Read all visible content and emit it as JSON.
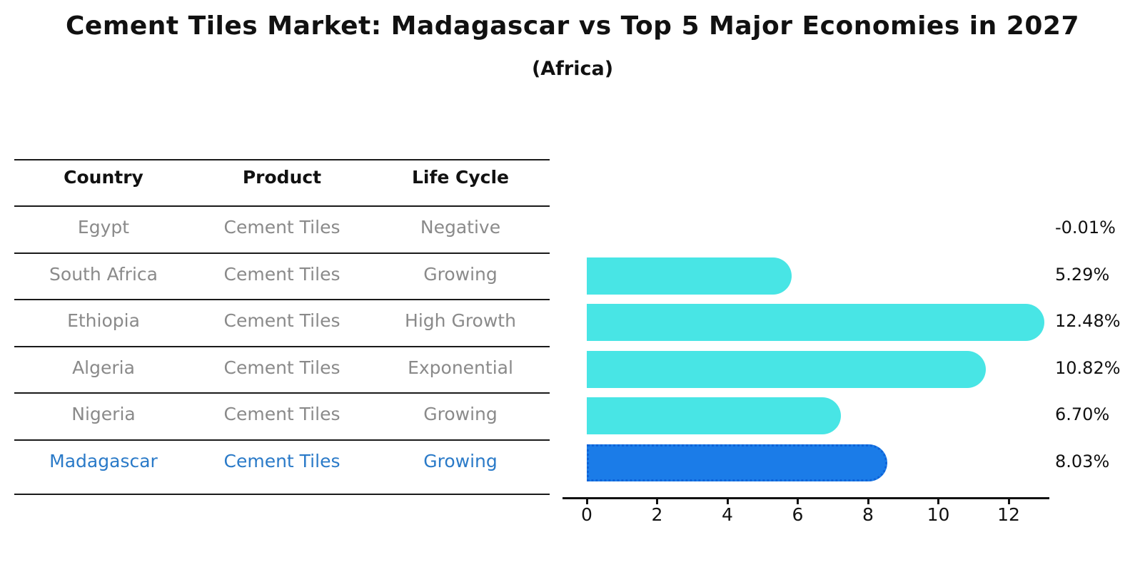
{
  "title": "Cement Tiles Market: Madagascar vs Top 5 Major Economies in 2027",
  "subtitle": "(Africa)",
  "table": {
    "columns": [
      "Country",
      "Product",
      "Life Cycle"
    ],
    "rows": [
      {
        "country": "Egypt",
        "product": "Cement Tiles",
        "life_cycle": "Negative",
        "highlight": false
      },
      {
        "country": "South Africa",
        "product": "Cement Tiles",
        "life_cycle": "Growing",
        "highlight": false
      },
      {
        "country": "Ethiopia",
        "product": "Cement Tiles",
        "life_cycle": "High Growth",
        "highlight": false
      },
      {
        "country": "Algeria",
        "product": "Cement Tiles",
        "life_cycle": "Exponential",
        "highlight": false
      },
      {
        "country": "Nigeria",
        "product": "Cement Tiles",
        "life_cycle": "Growing",
        "highlight": false
      },
      {
        "country": "Madagascar",
        "product": "Cement Tiles",
        "life_cycle": "Growing",
        "highlight": true
      }
    ]
  },
  "chart_data": {
    "type": "bar",
    "orientation": "horizontal",
    "title": "Cement Tiles Market: Madagascar vs Top 5 Major Economies in 2027",
    "subtitle": "(Africa)",
    "categories": [
      "Egypt",
      "South Africa",
      "Ethiopia",
      "Algeria",
      "Nigeria",
      "Madagascar"
    ],
    "values": [
      -0.01,
      5.29,
      12.48,
      10.82,
      6.7,
      8.03
    ],
    "value_labels": [
      "-0.01%",
      "5.29%",
      "12.48%",
      "10.82%",
      "6.70%",
      "8.03%"
    ],
    "x_ticks": [
      0,
      2,
      4,
      6,
      8,
      10,
      12
    ],
    "xlim": [
      0,
      13.2
    ],
    "grid": false,
    "legend": null,
    "highlight_index": 5,
    "bar_color": "#48E5E5",
    "highlight_bar_color": "#1B7CE8",
    "highlight_border_color": "#0E63D8"
  },
  "colors": {
    "title_text": "#111111",
    "table_text": "#8a8a8a",
    "table_header_text": "#111111",
    "highlight_text": "#2A7AC8",
    "axis": "#111111"
  }
}
